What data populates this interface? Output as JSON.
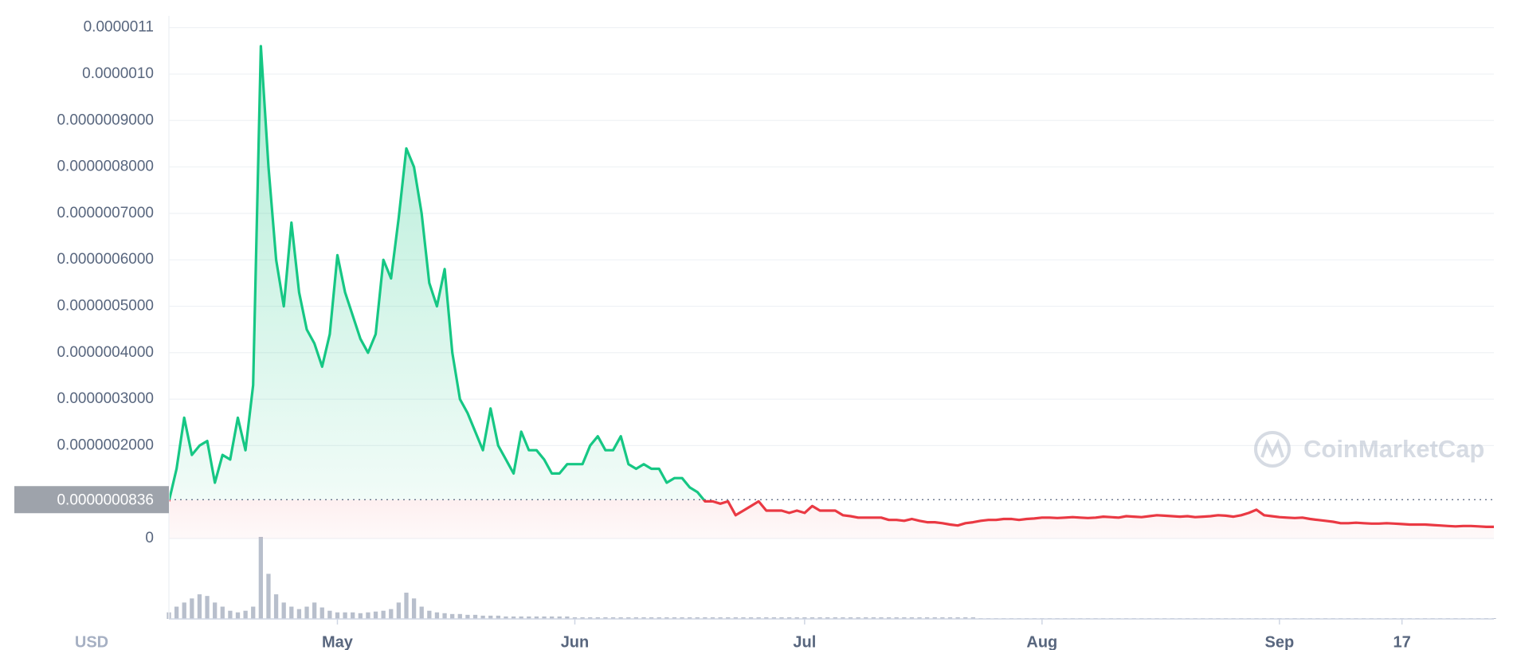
{
  "chart_data": {
    "type": "line",
    "currency": "USD",
    "watermark": "CoinMarketCap",
    "ylim": [
      0,
      1.12e-06
    ],
    "yticks": [
      0,
      {
        "value": 2e-07,
        "label": "0.0000002000"
      },
      {
        "value": 3e-07,
        "label": "0.0000003000"
      },
      {
        "value": 4e-07,
        "label": "0.0000004000"
      },
      {
        "value": 5e-07,
        "label": "0.0000005000"
      },
      {
        "value": 6e-07,
        "label": "0.0000006000"
      },
      {
        "value": 7e-07,
        "label": "0.0000007000"
      },
      {
        "value": 8e-07,
        "label": "0.0000008000"
      },
      {
        "value": 9e-07,
        "label": "0.0000009000"
      },
      {
        "value": 1e-06,
        "label": "0.0000010"
      },
      {
        "value": 1.1e-06,
        "label": "0.0000011"
      }
    ],
    "xlim": [
      0,
      173
    ],
    "xticks": [
      {
        "value": 22,
        "label": "May"
      },
      {
        "value": 53,
        "label": "Jun"
      },
      {
        "value": 83,
        "label": "Jul"
      },
      {
        "value": 114,
        "label": "Aug"
      },
      {
        "value": 145,
        "label": "Sep"
      },
      {
        "value": 161,
        "label": "17"
      }
    ],
    "reference": {
      "value": 8.36e-08,
      "label": "0.0000000836"
    },
    "colors": {
      "above": "#16c784",
      "below": "#ea3943",
      "volume": "#b8bfcc"
    },
    "grid": true,
    "series": [
      {
        "name": "Price",
        "values": [
          8e-08,
          1.5e-07,
          2.6e-07,
          1.8e-07,
          2e-07,
          2.1e-07,
          1.2e-07,
          1.8e-07,
          1.7e-07,
          2.6e-07,
          1.9e-07,
          3.3e-07,
          1.06e-06,
          8e-07,
          6e-07,
          5e-07,
          6.8e-07,
          5.3e-07,
          4.5e-07,
          4.2e-07,
          3.7e-07,
          4.4e-07,
          6.1e-07,
          5.3e-07,
          4.8e-07,
          4.3e-07,
          4e-07,
          4.4e-07,
          6e-07,
          5.6e-07,
          6.9e-07,
          8.4e-07,
          8e-07,
          7e-07,
          5.5e-07,
          5e-07,
          5.8e-07,
          4e-07,
          3e-07,
          2.7e-07,
          2.3e-07,
          1.9e-07,
          2.8e-07,
          2e-07,
          1.7e-07,
          1.4e-07,
          2.3e-07,
          1.9e-07,
          1.9e-07,
          1.7e-07,
          1.4e-07,
          1.4e-07,
          1.6e-07,
          1.6e-07,
          1.6e-07,
          2e-07,
          2.2e-07,
          1.9e-07,
          1.9e-07,
          2.2e-07,
          1.6e-07,
          1.5e-07,
          1.6e-07,
          1.5e-07,
          1.5e-07,
          1.2e-07,
          1.3e-07,
          1.3e-07,
          1.1e-07,
          1e-07,
          8e-08,
          8e-08,
          7.5e-08,
          8e-08,
          5e-08,
          6e-08,
          7e-08,
          8e-08,
          6e-08,
          6e-08,
          6e-08,
          5.5e-08,
          6e-08,
          5.5e-08,
          7e-08,
          6e-08,
          6e-08,
          6e-08,
          5e-08,
          4.8e-08,
          4.5e-08,
          4.5e-08,
          4.5e-08,
          4.5e-08,
          4e-08,
          4e-08,
          3.8e-08,
          4.2e-08,
          3.8e-08,
          3.5e-08,
          3.5e-08,
          3.3e-08,
          3e-08,
          2.8e-08,
          3.3e-08,
          3.5e-08,
          3.8e-08,
          4e-08,
          4e-08,
          4.2e-08,
          4.2e-08,
          4e-08,
          4.2e-08,
          4.3e-08,
          4.5e-08,
          4.5e-08,
          4.4e-08,
          4.5e-08,
          4.6e-08,
          4.5e-08,
          4.4e-08,
          4.5e-08,
          4.7e-08,
          4.6e-08,
          4.5e-08,
          4.8e-08,
          4.7e-08,
          4.6e-08,
          4.8e-08,
          5e-08,
          4.9e-08,
          4.8e-08,
          4.7e-08,
          4.8e-08,
          4.6e-08,
          4.7e-08,
          4.8e-08,
          5e-08,
          4.9e-08,
          4.7e-08,
          5e-08,
          5.5e-08,
          6.2e-08,
          5e-08,
          4.8e-08,
          4.6e-08,
          4.5e-08,
          4.4e-08,
          4.5e-08,
          4.2e-08,
          4e-08,
          3.8e-08,
          3.6e-08,
          3.3e-08,
          3.3e-08,
          3.4e-08,
          3.3e-08,
          3.2e-08,
          3.2e-08,
          3.3e-08,
          3.2e-08,
          3.1e-08,
          3e-08,
          3e-08,
          3e-08,
          2.9e-08,
          2.8e-08,
          2.7e-08,
          2.6e-08,
          2.7e-08,
          2.7e-08,
          2.6e-08,
          2.5e-08,
          2.5e-08
        ]
      },
      {
        "name": "Volume",
        "values": [
          8,
          15,
          20,
          25,
          30,
          28,
          20,
          15,
          10,
          8,
          10,
          15,
          100,
          55,
          30,
          20,
          15,
          12,
          15,
          20,
          14,
          10,
          8,
          8,
          8,
          7,
          8,
          9,
          10,
          12,
          20,
          32,
          25,
          15,
          10,
          8,
          7,
          6,
          6,
          5,
          5,
          4,
          4,
          4,
          3,
          3,
          3,
          3,
          3,
          3,
          3,
          3,
          3,
          2,
          2,
          2,
          2,
          2,
          2,
          2,
          2,
          2,
          2,
          2,
          2,
          2,
          2,
          2,
          2,
          2,
          2,
          2,
          2,
          2,
          2,
          2,
          2,
          2,
          2,
          2,
          2,
          2,
          2,
          2,
          2,
          2,
          2,
          2,
          2,
          2,
          2,
          2,
          2,
          2,
          2,
          2,
          2,
          2,
          2,
          2,
          2,
          2,
          2,
          2,
          2,
          2,
          1,
          1,
          1,
          1,
          1,
          1,
          1,
          1,
          1,
          1,
          1,
          1,
          1,
          1,
          1,
          1,
          1,
          1,
          1,
          1,
          1,
          1,
          1,
          1,
          1,
          1,
          1,
          1,
          1,
          1,
          1,
          1,
          1,
          1,
          1,
          1,
          1,
          1,
          1,
          1,
          1,
          1,
          1,
          1,
          1,
          1,
          1,
          1,
          1,
          1,
          1,
          1,
          1,
          1,
          1,
          1,
          1,
          1,
          1,
          1,
          1,
          1,
          1,
          1,
          1,
          1,
          1,
          1
        ]
      }
    ]
  }
}
